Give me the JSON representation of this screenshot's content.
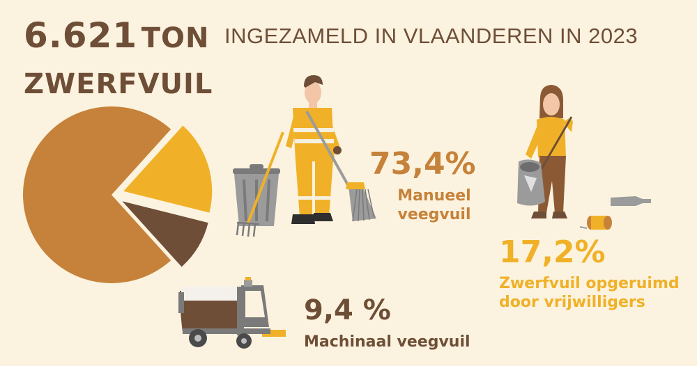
{
  "header": {
    "amount": "6.621",
    "unit": "TON",
    "subject": "ZWERFVUIL",
    "subtitle": "INGEZAMELD IN VLAANDEREN IN 2023"
  },
  "chart_data": {
    "type": "pie",
    "slices": [
      {
        "label": "Manueel veegvuil",
        "value": 73.4,
        "display": "73,4%",
        "color": "#c6823a"
      },
      {
        "label": "Zwerfvuil opgeruimd door vrijwilligers",
        "value": 17.2,
        "display": "17,2%",
        "color": "#f0b128"
      },
      {
        "label": "Machinaal veegvuil",
        "value": 9.4,
        "display": "9,4 %",
        "color": "#6f4e37"
      }
    ]
  },
  "labels": {
    "manual": {
      "pct": "73,4%",
      "line1": "Manueel",
      "line2": "veegvuil"
    },
    "volunteers": {
      "pct": "17,2%",
      "line1": "Zwerfvuil opgeruimd",
      "line2": "door vrijwilligers"
    },
    "machine": {
      "pct": "9,4 %",
      "line1": "Machinaal veegvuil"
    }
  },
  "icons": [
    "street-sweeper-worker-icon",
    "trash-bin-icon",
    "volunteer-icon",
    "sweeper-vehicle-icon"
  ]
}
